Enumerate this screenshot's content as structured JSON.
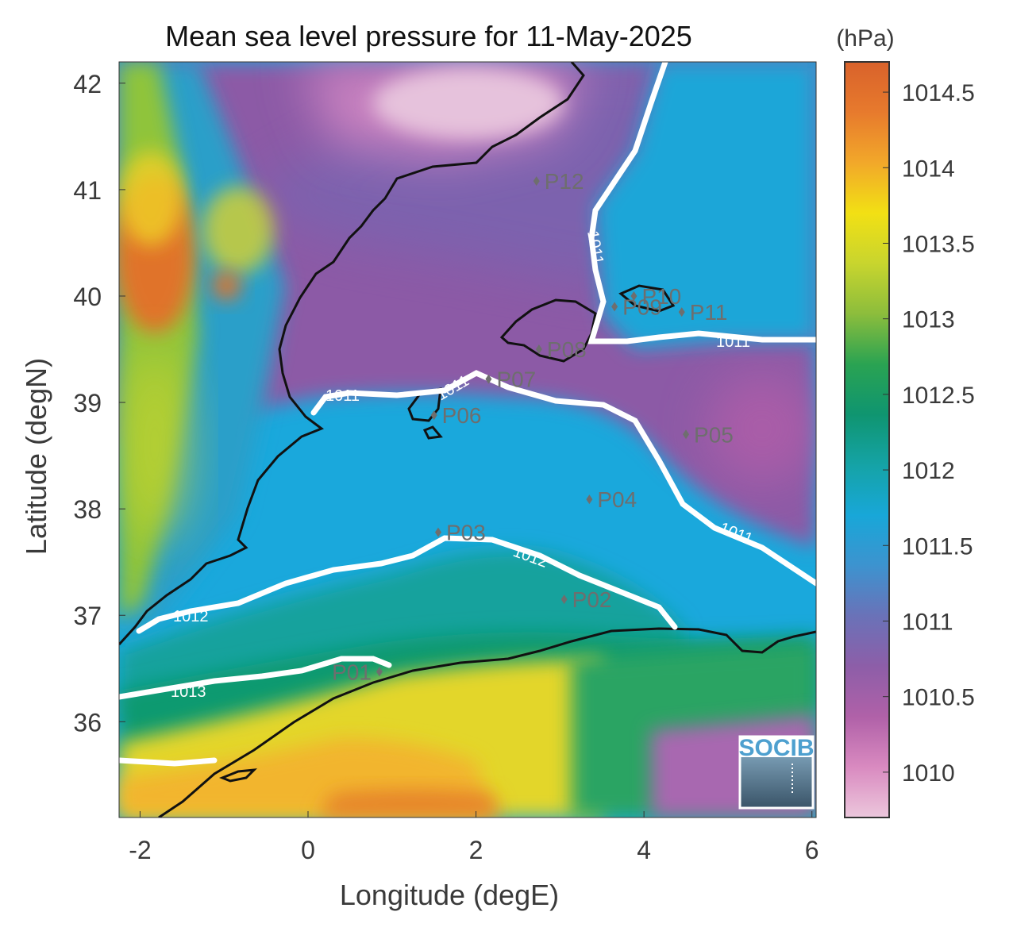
{
  "title": "Mean sea level pressure for 11-May-2025",
  "units": "(hPa)",
  "xlabel": "Longitude (degE)",
  "ylabel": "Latitude (degN)",
  "logo": "SOCIB",
  "x_ticks": [
    "-2",
    "0",
    "2",
    "4",
    "6"
  ],
  "y_ticks": [
    "36",
    "37",
    "38",
    "39",
    "40",
    "41",
    "42"
  ],
  "colorbar": {
    "ticks": [
      "1010",
      "1010.5",
      "1011",
      "1011.5",
      "1012",
      "1012.5",
      "1013",
      "1013.5",
      "1014",
      "1014.5"
    ],
    "range": [
      1009.7,
      1014.7
    ],
    "colors": [
      "#ecc7dc",
      "#d98ac0",
      "#b061a8",
      "#8d5ea8",
      "#6a72b8",
      "#3d93cf",
      "#18a7d8",
      "#15a3a6",
      "#0f9570",
      "#2aa352",
      "#8cbd3c",
      "#c8d52e",
      "#f2e014",
      "#f2a82a",
      "#e77a2d",
      "#d9622b"
    ]
  },
  "map": {
    "xlim": [
      -2.25,
      6.05
    ],
    "ylim": [
      35.1,
      42.2
    ],
    "contour_levels": [
      "1011",
      "1012",
      "1013"
    ]
  },
  "points": [
    {
      "name": "P01",
      "lon": 0.85,
      "lat": 36.47
    },
    {
      "name": "P02",
      "lon": 3.05,
      "lat": 37.15
    },
    {
      "name": "P03",
      "lon": 1.55,
      "lat": 37.78
    },
    {
      "name": "P04",
      "lon": 3.35,
      "lat": 38.09
    },
    {
      "name": "P05",
      "lon": 4.5,
      "lat": 38.7
    },
    {
      "name": "P06",
      "lon": 1.5,
      "lat": 38.88
    },
    {
      "name": "P07",
      "lon": 2.15,
      "lat": 39.22
    },
    {
      "name": "P08",
      "lon": 2.75,
      "lat": 39.5
    },
    {
      "name": "P09",
      "lon": 3.65,
      "lat": 39.9
    },
    {
      "name": "P10",
      "lon": 3.88,
      "lat": 40.0
    },
    {
      "name": "P11",
      "lon": 4.45,
      "lat": 39.85
    },
    {
      "name": "P12",
      "lon": 2.72,
      "lat": 41.08
    }
  ]
}
